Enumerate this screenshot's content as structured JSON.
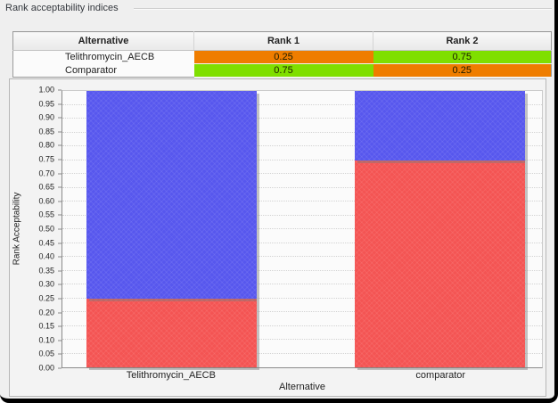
{
  "group_title": "Rank acceptability indices",
  "table": {
    "headers": [
      "Alternative",
      "Rank 1",
      "Rank 2"
    ],
    "rows": [
      {
        "alternative": "Telithromycin_AECB",
        "rank1": "0.25",
        "rank2": "0.75",
        "rank1_color": "#ef7d00",
        "rank2_color": "#7fdf00"
      },
      {
        "alternative": "Comparator",
        "rank1": "0.75",
        "rank2": "0.25",
        "rank1_color": "#7fdf00",
        "rank2_color": "#ef7d00"
      }
    ]
  },
  "chart_data": {
    "type": "bar",
    "stacked": true,
    "title": "",
    "xlabel": "Alternative",
    "ylabel": "Rank Acceptability",
    "categories": [
      "Telithromycin_AECB",
      "comparator"
    ],
    "series": [
      {
        "name": "Rank 1",
        "color": "#f45453",
        "values": [
          0.25,
          0.75
        ]
      },
      {
        "name": "Rank 2",
        "color": "#5757ee",
        "values": [
          0.75,
          0.25
        ]
      }
    ],
    "ylim": [
      0,
      1
    ],
    "ytick_step": 0.05,
    "grid": true,
    "legend_position": "none"
  },
  "colors": {
    "orange_cell": "#ef7d00",
    "green_cell": "#7fdf00",
    "bar_rank1_red": "#f45453",
    "bar_rank2_blue": "#5757ee",
    "panel_background": "#efefef",
    "frame": "#000000"
  }
}
